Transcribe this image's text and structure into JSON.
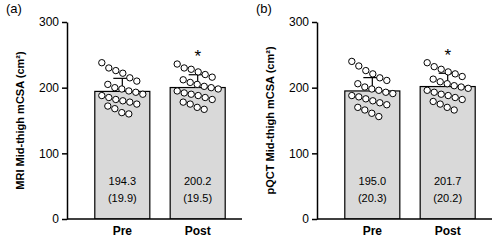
{
  "chart_data": [
    {
      "type": "bar",
      "title": "(a)",
      "y_label": "MRI Mid-thigh mCSA (cm²)",
      "categories": [
        "Pre",
        "Post"
      ],
      "values": [
        194.3,
        200.2
      ],
      "errors": [
        19.9,
        19.5
      ],
      "error_labels": [
        "(19.9)",
        "(19.5)"
      ],
      "points": [
        [
          238,
          230,
          226,
          222,
          215,
          210,
          205,
          200,
          198,
          195,
          193,
          190,
          188,
          185,
          182,
          180,
          178,
          175,
          172,
          168,
          162,
          160
        ],
        [
          236,
          230,
          228,
          224,
          220,
          216,
          212,
          208,
          205,
          202,
          200,
          198,
          195,
          192,
          190,
          188,
          185,
          182,
          178,
          175,
          170,
          167
        ]
      ],
      "annotations": [
        {
          "category": "Post",
          "text": "*"
        }
      ],
      "color": "#d9d9d9",
      "data_labels": true,
      "grid": false,
      "ylim": [
        0,
        300
      ],
      "yticks": [
        0,
        100,
        200,
        300
      ]
    },
    {
      "type": "bar",
      "title": "(b)",
      "y_label": "pQCT Mid-thigh mCSA (cm²)",
      "categories": [
        "Pre",
        "Post"
      ],
      "values": [
        195.0,
        201.7
      ],
      "errors": [
        20.3,
        20.2
      ],
      "error_labels": [
        "(20.3)",
        "(20.2)"
      ],
      "points": [
        [
          240,
          233,
          226,
          221,
          215,
          211,
          206,
          201,
          198,
          196,
          193,
          191,
          188,
          186,
          183,
          180,
          177,
          174,
          170,
          166,
          161,
          156
        ],
        [
          238,
          232,
          228,
          224,
          221,
          217,
          213,
          209,
          206,
          203,
          201,
          199,
          196,
          193,
          190,
          188,
          185,
          182,
          179,
          175,
          170,
          166
        ]
      ],
      "annotations": [
        {
          "category": "Post",
          "text": "*"
        }
      ],
      "color": "#d9d9d9",
      "data_labels": true,
      "grid": false,
      "ylim": [
        0,
        300
      ],
      "yticks": [
        0,
        100,
        200,
        300
      ]
    }
  ]
}
